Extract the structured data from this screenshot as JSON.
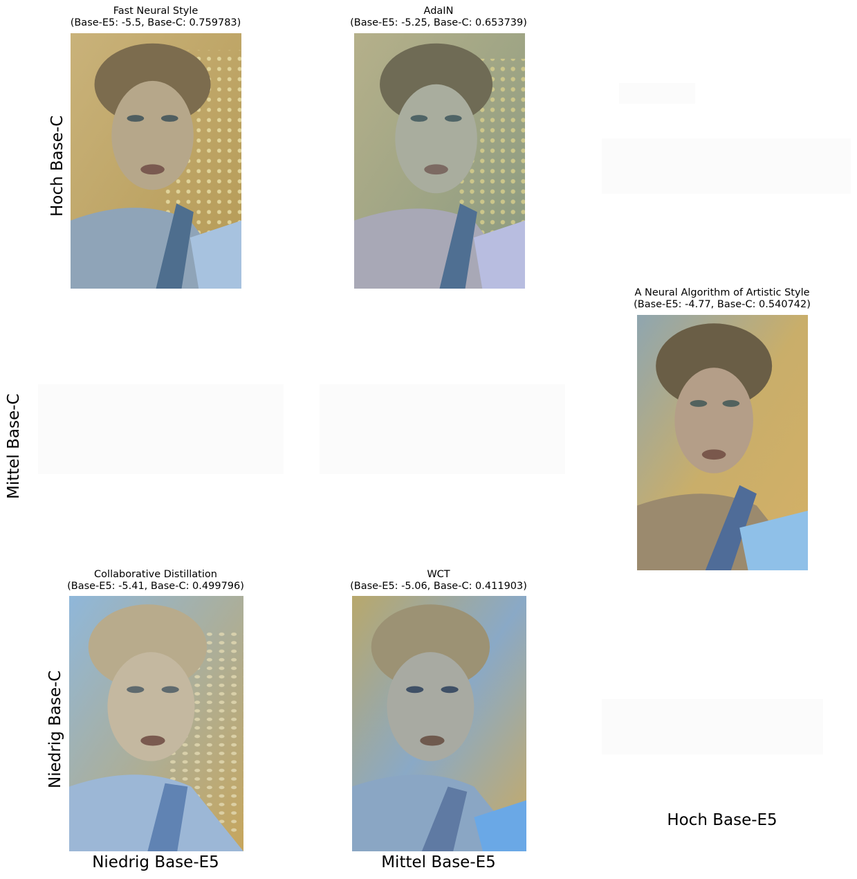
{
  "rows": [
    {
      "label": "Hoch Base-C"
    },
    {
      "label": "Mittel Base-C"
    },
    {
      "label": "Niedrig Base-C"
    }
  ],
  "columns": [
    {
      "label": "Niedrig Base-E5"
    },
    {
      "label": "Mittel Base-E5"
    },
    {
      "label": "Hoch Base-E5"
    }
  ],
  "panels": [
    {
      "title": "Fast Neural Style",
      "scores": "(Base-E5: -5.5, Base-C: 0.759783)"
    },
    {
      "title": "AdaIN",
      "scores": "(Base-E5: -5.25, Base-C: 0.653739)"
    },
    {
      "title": "A Neural Algorithm of Artistic Style",
      "scores": "(Base-E5: -4.77, Base-C: 0.540742)"
    },
    {
      "title": "Collaborative Distillation",
      "scores": "(Base-E5: -5.41, Base-C: 0.499796)"
    },
    {
      "title": "WCT",
      "scores": "(Base-E5: -5.06, Base-C: 0.411903)"
    }
  ],
  "colors": {
    "warm": "#c8a75e",
    "cool": "#6f9cc7",
    "skin": "#b9a88a",
    "hair": "#6e6248"
  }
}
